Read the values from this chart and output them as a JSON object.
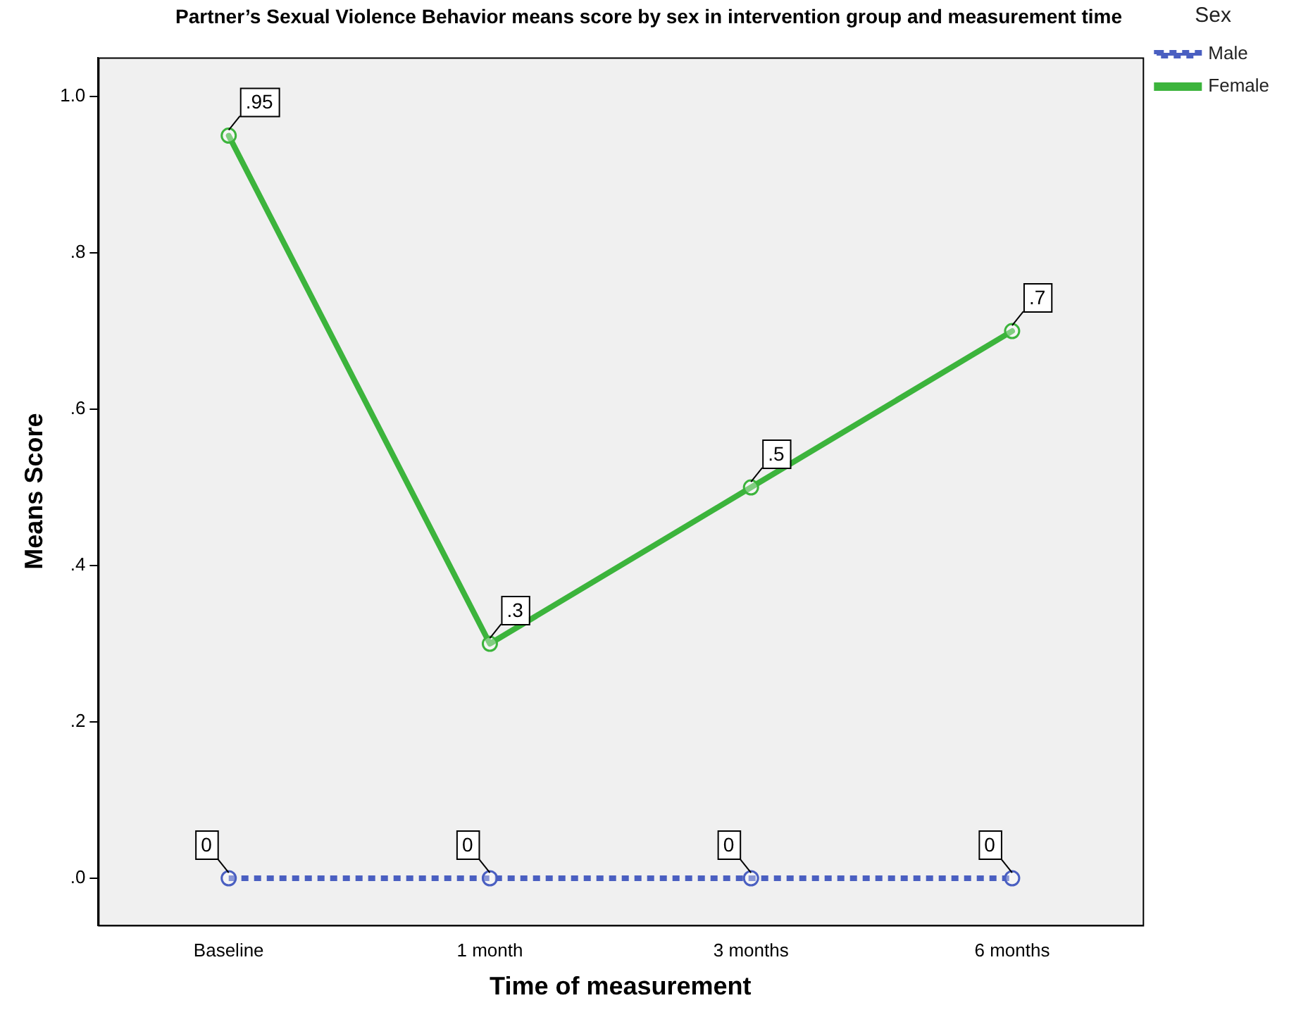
{
  "chart_data": {
    "type": "line",
    "title": "Partner’s Sexual Violence Behavior means score by sex in intervention group and measurement time",
    "xlabel": "Time of measurement",
    "ylabel": "Means Score",
    "legend_title": "Sex",
    "categories": [
      "Baseline",
      "1 month",
      "3 months",
      "6 months"
    ],
    "series": [
      {
        "name": "Male",
        "color": "#4a5fc1",
        "values": [
          0,
          0,
          0,
          0
        ],
        "value_labels": [
          "0",
          "0",
          "0",
          "0"
        ],
        "line_style": "dotted"
      },
      {
        "name": "Female",
        "color": "#3cb43c",
        "values": [
          0.95,
          0.3,
          0.5,
          0.7
        ],
        "value_labels": [
          ".95",
          ".3",
          ".5",
          ".7"
        ],
        "line_style": "solid"
      }
    ],
    "ylim": [
      -0.06,
      1.05
    ],
    "yticks": [
      {
        "value": 0,
        "label": ".0"
      },
      {
        "value": 0.2,
        "label": ".2"
      },
      {
        "value": 0.4,
        "label": ".4"
      },
      {
        "value": 0.6,
        "label": ".6"
      },
      {
        "value": 0.8,
        "label": ".8"
      },
      {
        "value": 1.0,
        "label": "1.0"
      }
    ],
    "grid": false,
    "legend": "right",
    "marker": "circle"
  }
}
